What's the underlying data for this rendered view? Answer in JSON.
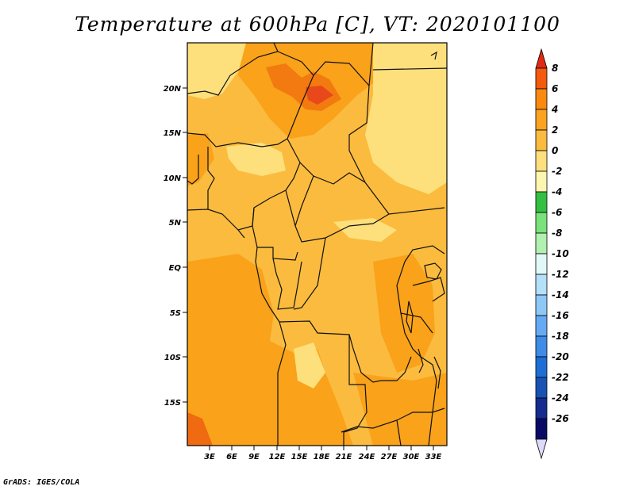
{
  "title": "Temperature at 600hPa [C], VT: 2020101100",
  "footer": "GrADS: IGES/COLA",
  "map": {
    "lat_ticks": [
      "20N",
      "15N",
      "10N",
      "5N",
      "EQ",
      "5S",
      "10S",
      "15S"
    ],
    "lon_ticks": [
      "3E",
      "6E",
      "9E",
      "12E",
      "15E",
      "18E",
      "21E",
      "24E",
      "27E",
      "30E",
      "33E"
    ]
  },
  "colorbar": {
    "labels": [
      "8",
      "6",
      "4",
      "2",
      "0",
      "-2",
      "-4",
      "-6",
      "-8",
      "-10",
      "-12",
      "-14",
      "-16",
      "-18",
      "-20",
      "-22",
      "-24",
      "-26"
    ],
    "colors": [
      "#e02a14",
      "#f45a0d",
      "#f98a0e",
      "#fba320",
      "#fbbb3e",
      "#fde07c",
      "#fdf6b0",
      "#34bf43",
      "#7ae27a",
      "#b2f0b0",
      "#e2f8f8",
      "#b4e0fa",
      "#8ec8f7",
      "#66aaf4",
      "#3e8ce8",
      "#1e6ed6",
      "#1a52b4",
      "#152c8e",
      "#0a0a66",
      "#dcdcf8"
    ]
  }
}
